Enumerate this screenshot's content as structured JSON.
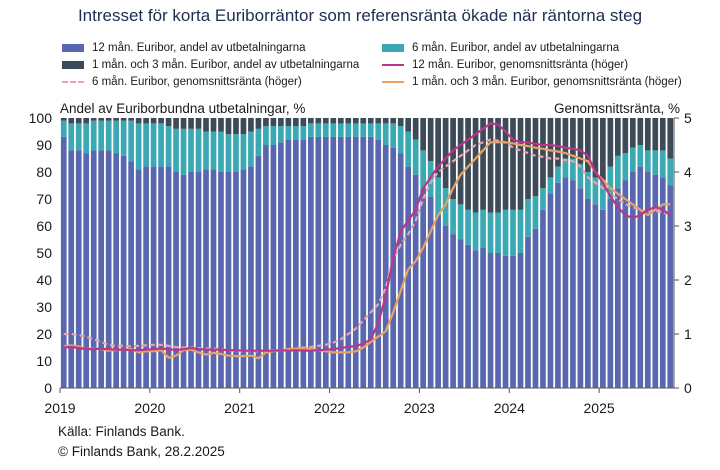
{
  "chart_data": {
    "type": "bar",
    "title": "Intresset för korta Euriborräntor som referensränta ökade när räntorna steg",
    "ylabel_left": "Andel av Euriborbundna utbetalningar, %",
    "ylabel_right": "Genomsnittsränta, %",
    "ylim_left": [
      0,
      100
    ],
    "ylim_right": [
      0,
      5
    ],
    "yticks_left": [
      "0",
      "10",
      "20",
      "30",
      "40",
      "50",
      "60",
      "70",
      "80",
      "90",
      "100"
    ],
    "yticks_right": [
      "0",
      "1",
      "2",
      "3",
      "4",
      "5"
    ],
    "xticks": [
      "2019",
      "2020",
      "2021",
      "2022",
      "2023",
      "2024",
      "2025"
    ],
    "legend": [
      {
        "label": "12 mån. Euribor, andel av utbetalningarna",
        "kind": "bar",
        "color": "#5867ae"
      },
      {
        "label": "6 mån. Euribor, andel av utbetalningarna",
        "kind": "bar",
        "color": "#3aa9b3"
      },
      {
        "label": "1 mån. och 3 mån. Euribor, andel av utbetalningarna",
        "kind": "bar",
        "color": "#3d4a57"
      },
      {
        "label": "12 mån. Euribor, genomsnittsränta (höger)",
        "kind": "line",
        "color": "#b8368c"
      },
      {
        "label": "6 mån. Euribor, genomsnittsränta (höger)",
        "kind": "dash",
        "color": "#e8a3ad"
      },
      {
        "label": "1 mån. och 3 mån. Euribor, genomsnittsränta (höger)",
        "kind": "line",
        "color": "#e8a263"
      }
    ],
    "x_start": "2019-01",
    "bars": {
      "share_12m": [
        93,
        88,
        88,
        87,
        88,
        88,
        88,
        87,
        86,
        84,
        81,
        82,
        82,
        82,
        82,
        80,
        79,
        80,
        80,
        81,
        81,
        80,
        80,
        80,
        81,
        82,
        86,
        90,
        90,
        91,
        92,
        92,
        92,
        93,
        93,
        93,
        93,
        93,
        93,
        93,
        93,
        93,
        92,
        90,
        89,
        87,
        82,
        79,
        74,
        71,
        64,
        60,
        57,
        55,
        53,
        51,
        52,
        50,
        50,
        49,
        49,
        50,
        56,
        59,
        66,
        72,
        76,
        78,
        77,
        74,
        70,
        68,
        66,
        70,
        74,
        77,
        80,
        82,
        80,
        79,
        78,
        75
      ],
      "share_6m": [
        6,
        10,
        10,
        11,
        11,
        11,
        11,
        12,
        13,
        15,
        17,
        16,
        16,
        16,
        15,
        16,
        17,
        16,
        16,
        14,
        14,
        15,
        14,
        14,
        13,
        13,
        10,
        7,
        7,
        6,
        5,
        5,
        5,
        5,
        5,
        5,
        5,
        5,
        5,
        5,
        5,
        5,
        6,
        8,
        9,
        10,
        13,
        13,
        14,
        13,
        14,
        14,
        13,
        13,
        13,
        14,
        14,
        15,
        15,
        17,
        17,
        16,
        14,
        12,
        8,
        6,
        6,
        7,
        8,
        9,
        10,
        10,
        11,
        12,
        12,
        10,
        9,
        8,
        8,
        9,
        10,
        10
      ],
      "share_1m3m": [
        1,
        2,
        2,
        2,
        1,
        1,
        1,
        1,
        1,
        1,
        2,
        2,
        2,
        2,
        3,
        4,
        4,
        4,
        4,
        5,
        5,
        5,
        6,
        6,
        6,
        5,
        4,
        3,
        3,
        3,
        3,
        3,
        3,
        2,
        2,
        2,
        2,
        2,
        2,
        2,
        2,
        2,
        2,
        2,
        2,
        3,
        5,
        8,
        12,
        16,
        22,
        26,
        30,
        32,
        34,
        35,
        34,
        35,
        35,
        34,
        34,
        34,
        30,
        29,
        26,
        22,
        18,
        15,
        15,
        17,
        20,
        22,
        23,
        18,
        14,
        13,
        11,
        10,
        12,
        12,
        12,
        15
      ]
    },
    "lines": {
      "rate_12m": [
        0.75,
        0.76,
        0.74,
        0.72,
        0.72,
        0.73,
        0.72,
        0.71,
        0.71,
        0.7,
        0.7,
        0.71,
        0.72,
        0.73,
        0.72,
        0.7,
        0.72,
        0.74,
        0.72,
        0.71,
        0.71,
        0.71,
        0.7,
        0.7,
        0.69,
        0.69,
        0.69,
        0.69,
        0.69,
        0.7,
        0.69,
        0.7,
        0.69,
        0.69,
        0.7,
        0.71,
        0.72,
        0.74,
        0.76,
        0.78,
        0.82,
        0.9,
        1.2,
        1.7,
        2.4,
        2.9,
        3.1,
        3.3,
        3.7,
        3.9,
        4.1,
        4.25,
        4.4,
        4.5,
        4.6,
        4.7,
        4.8,
        4.9,
        4.88,
        4.75,
        4.6,
        4.55,
        4.55,
        4.52,
        4.5,
        4.5,
        4.48,
        4.45,
        4.43,
        4.4,
        4.3,
        4.0,
        3.8,
        3.55,
        3.35,
        3.2,
        3.15,
        3.2,
        3.3,
        3.35,
        3.3,
        3.2
      ],
      "rate_6m": [
        1.0,
        1.0,
        0.98,
        0.95,
        0.9,
        0.85,
        0.8,
        0.78,
        0.78,
        0.77,
        0.78,
        0.79,
        0.8,
        0.8,
        0.78,
        0.76,
        0.75,
        0.75,
        0.74,
        0.73,
        0.73,
        0.72,
        0.7,
        0.68,
        0.68,
        0.68,
        0.68,
        0.69,
        0.7,
        0.7,
        0.71,
        0.72,
        0.74,
        0.76,
        0.78,
        0.8,
        0.84,
        0.9,
        1.0,
        1.1,
        1.25,
        1.4,
        1.55,
        1.85,
        2.4,
        2.65,
        2.85,
        3.1,
        3.5,
        3.8,
        4.0,
        4.1,
        4.2,
        4.3,
        4.4,
        4.5,
        4.55,
        4.6,
        4.58,
        4.55,
        4.45,
        4.4,
        4.35,
        4.3,
        4.28,
        4.25,
        4.25,
        4.22,
        4.2,
        4.1,
        3.9,
        3.8,
        3.7,
        3.6,
        3.5,
        3.4,
        3.35,
        3.3,
        3.25,
        3.28,
        3.25,
        3.22
      ],
      "rate_1m3m": [
        0.77,
        0.79,
        0.77,
        0.72,
        0.73,
        0.72,
        0.69,
        0.7,
        0.71,
        0.72,
        0.66,
        0.68,
        0.68,
        0.7,
        0.56,
        0.6,
        0.7,
        0.71,
        0.66,
        0.62,
        0.65,
        0.63,
        0.6,
        0.59,
        0.59,
        0.6,
        0.55,
        0.66,
        0.68,
        0.7,
        0.72,
        0.73,
        0.75,
        0.72,
        0.7,
        0.68,
        0.66,
        0.66,
        0.66,
        0.68,
        0.75,
        0.85,
        0.95,
        1.05,
        1.4,
        1.8,
        2.2,
        2.35,
        2.6,
        2.9,
        3.2,
        3.4,
        3.7,
        3.95,
        4.1,
        4.25,
        4.4,
        4.55,
        4.55,
        4.55,
        4.53,
        4.5,
        4.48,
        4.45,
        4.43,
        4.4,
        4.38,
        4.35,
        4.3,
        4.25,
        4.2,
        4.0,
        3.85,
        3.7,
        3.6,
        3.5,
        3.4,
        3.3,
        3.2,
        3.3,
        3.4,
        3.4
      ]
    },
    "source": "Källa: Finlands Bank.",
    "copyright": "© Finlands Bank, 28.2.2025"
  }
}
